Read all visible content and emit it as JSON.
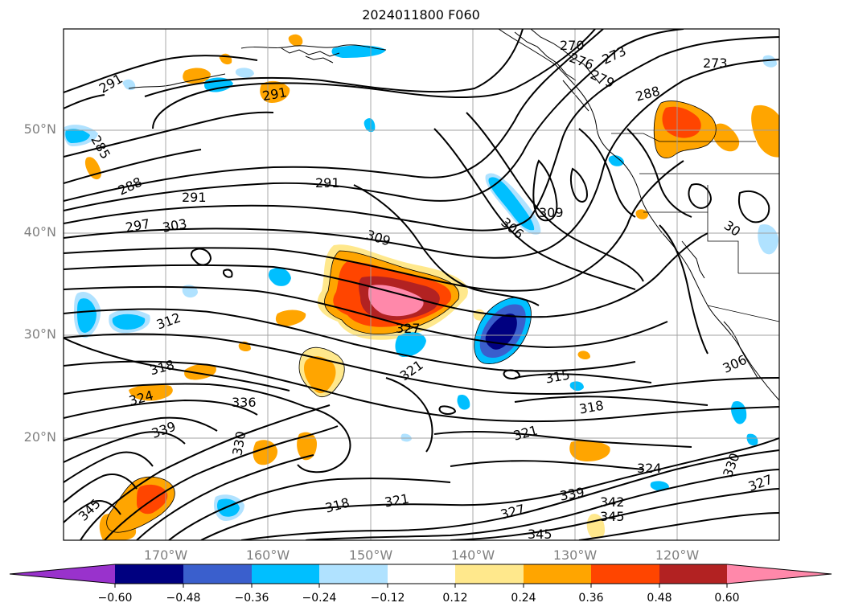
{
  "title": "2024011800 F060",
  "lat_labels": [
    "50°N",
    "40°N",
    "30°N",
    "20°N"
  ],
  "lon_labels": [
    "170°W",
    "160°W",
    "150°W",
    "140°W",
    "130°W",
    "120°W"
  ],
  "colorbar": {
    "ticks": [
      "−0.60",
      "−0.48",
      "−0.36",
      "−0.24",
      "−0.12",
      "0.12",
      "0.24",
      "0.36",
      "0.48",
      "0.60"
    ],
    "colors": [
      "#9932cc",
      "#000080",
      "#3a5fcd",
      "#00bfff",
      "#b0e2ff",
      "#ffffff",
      "#ffe88c",
      "#ffa500",
      "#ff4500",
      "#b22222",
      "#ff88aa"
    ]
  },
  "contour_labels": [
    "291",
    "291",
    "285",
    "288",
    "291",
    "297",
    "303",
    "291",
    "309",
    "309",
    "306",
    "270",
    "276",
    "273",
    "279",
    "273",
    "288",
    "312",
    "318",
    "324",
    "336",
    "339",
    "345",
    "330",
    "327",
    "321",
    "315",
    "318",
    "321",
    "324",
    "330",
    "327",
    "339",
    "342",
    "345",
    "345",
    "318",
    "321",
    "327",
    "306",
    "30"
  ]
}
